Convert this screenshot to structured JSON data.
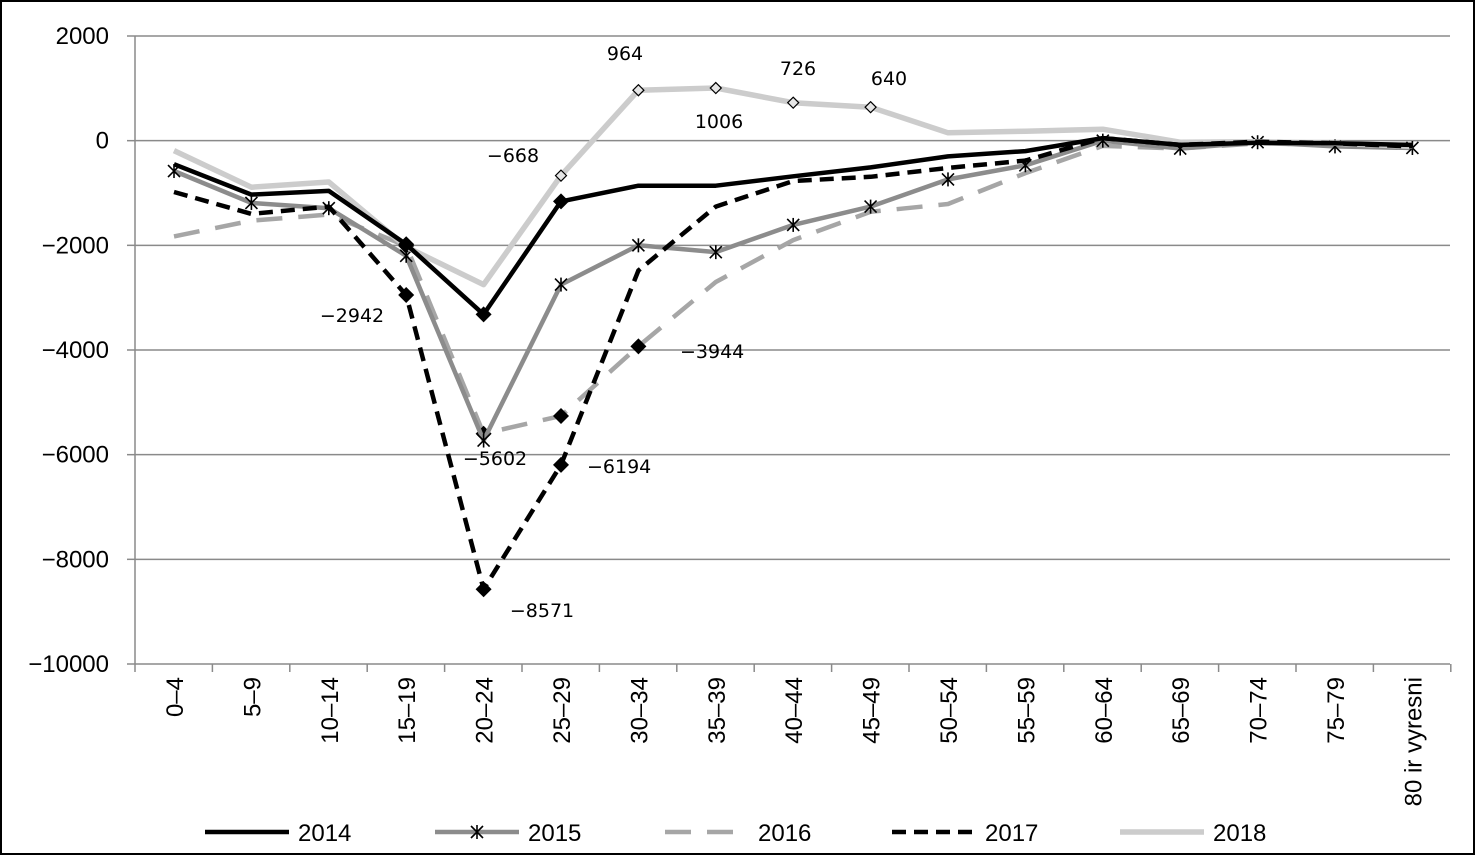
{
  "chart_data": {
    "type": "line",
    "title": "",
    "xlabel": "",
    "ylabel": "",
    "ylim": [
      -10000,
      2000
    ],
    "y_ticks": [
      "2000",
      "0",
      "−2000",
      "−4000",
      "−6000",
      "−8000",
      "−10000"
    ],
    "y_tick_values": [
      2000,
      0,
      -2000,
      -4000,
      -6000,
      -8000,
      -10000
    ],
    "grid": "horizontal",
    "legend_position": "bottom",
    "categories": [
      "0–4",
      "5–9",
      "10–14",
      "15–19",
      "20–24",
      "25–29",
      "30–34",
      "35–39",
      "40–44",
      "45–49",
      "50–54",
      "55–59",
      "60–64",
      "65–69",
      "70–74",
      "75–79",
      "80 ir vyresni"
    ],
    "series": [
      {
        "name": "2014",
        "color": "#000000",
        "dash": "solid",
        "marker": "diamond-filled-sparse",
        "values": [
          -450,
          -1030,
          -960,
          -1980,
          -3320,
          -1160,
          -860,
          -860,
          -680,
          -510,
          -300,
          -200,
          50,
          -80,
          -40,
          -50,
          -80
        ]
      },
      {
        "name": "2015",
        "color": "#8c8c8c",
        "dash": "solid",
        "marker": "star",
        "values": [
          -580,
          -1190,
          -1290,
          -2200,
          -5730,
          -2750,
          -2000,
          -2130,
          -1610,
          -1260,
          -740,
          -470,
          0,
          -150,
          -30,
          -110,
          -140
        ]
      },
      {
        "name": "2016",
        "color": "#a6a6a6",
        "dash": "dashed",
        "marker": "none",
        "values": [
          -1830,
          -1530,
          -1410,
          -2010,
          -5600,
          -5260,
          -3930,
          -2700,
          -1900,
          -1360,
          -1210,
          -620,
          -100,
          -150,
          -50,
          -80,
          -130
        ]
      },
      {
        "name": "2017",
        "color": "#000000",
        "dash": "dashed",
        "marker": "diamond-filled",
        "values": [
          -980,
          -1400,
          -1260,
          -2950,
          -8571,
          -6194,
          -2480,
          -1260,
          -770,
          -690,
          -520,
          -380,
          50,
          -80,
          -20,
          -50,
          -110
        ]
      },
      {
        "name": "2018",
        "color": "#cccccc",
        "dash": "solid",
        "marker": "diamond-open-sparse",
        "values": [
          -190,
          -890,
          -790,
          -2030,
          -2750,
          -668,
          964,
          1006,
          726,
          640,
          150,
          180,
          220,
          -30,
          -20,
          -50,
          -110
        ]
      }
    ],
    "annotations": [
      "964",
      "726",
      "640",
      "1006",
      "−668",
      "−2942",
      "−3944",
      "−5602",
      "−6194",
      "−8571"
    ]
  }
}
